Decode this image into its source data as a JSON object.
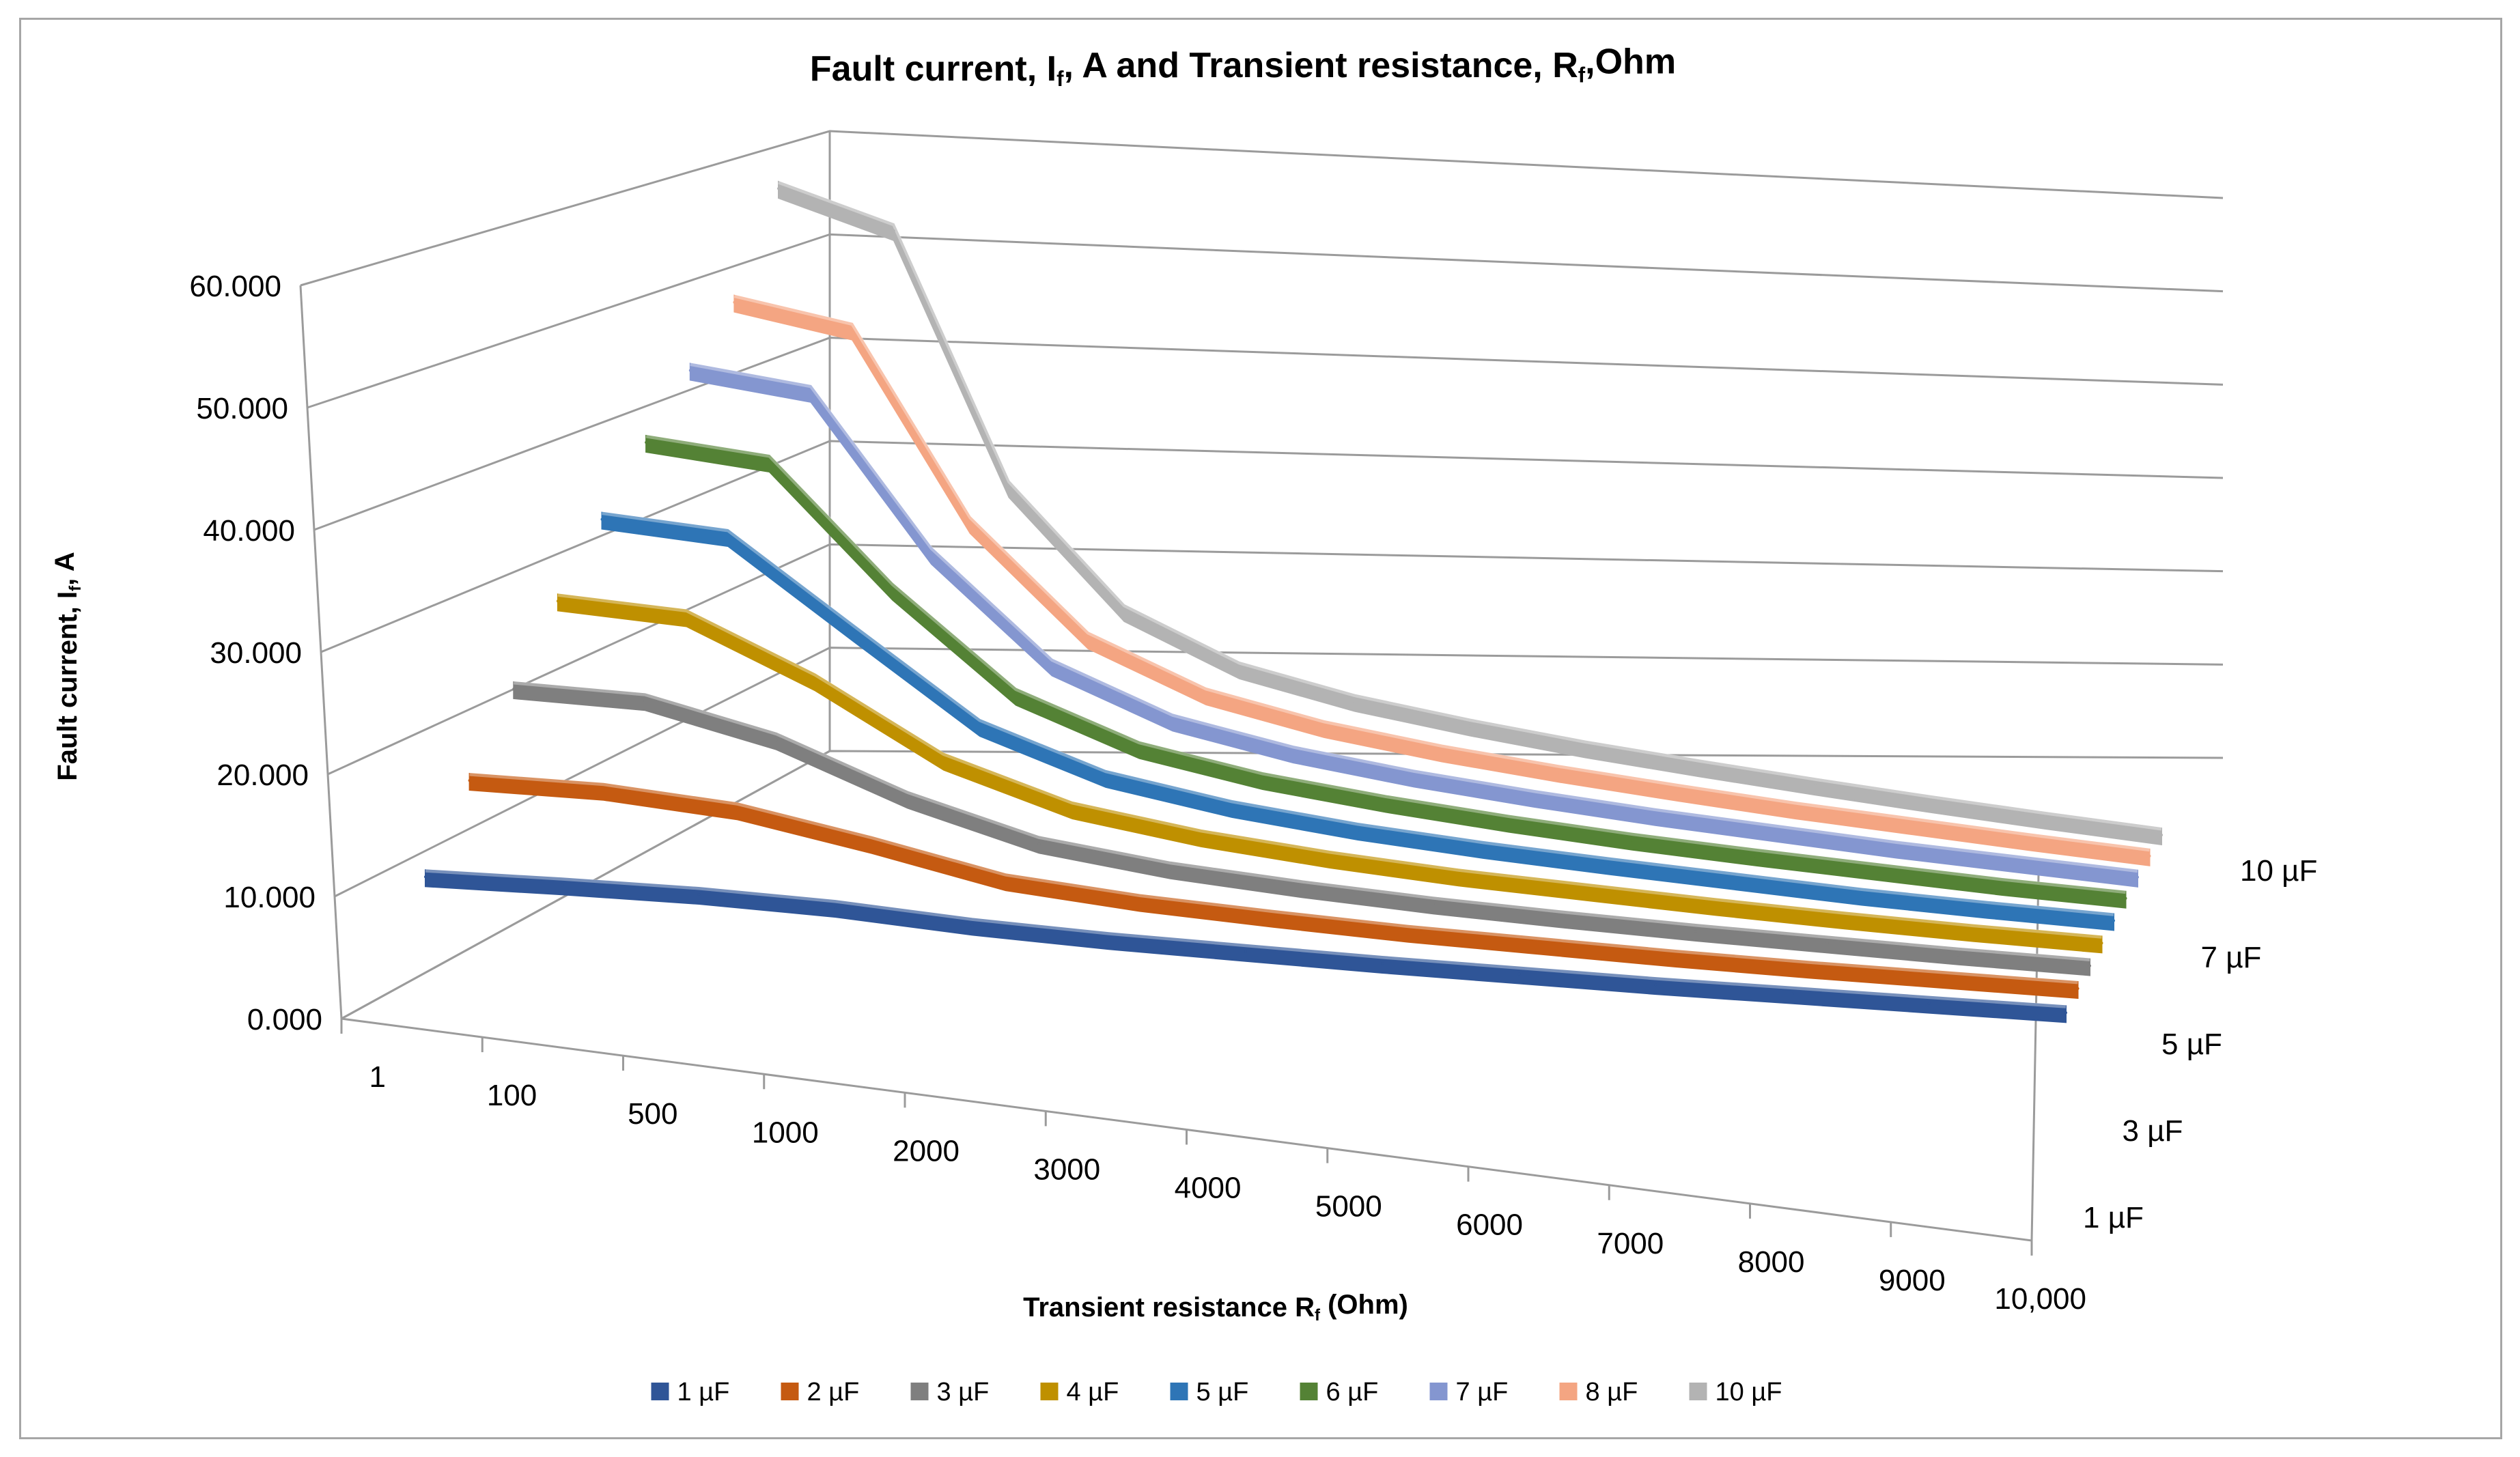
{
  "chart_data": {
    "type": "line3d",
    "title_parts": [
      "Fault current, I",
      "f",
      ", A and Transient resistance, R",
      "f",
      ",Ohm"
    ],
    "ylabel_parts": [
      "Fault current, I",
      "f",
      ", A"
    ],
    "xlabel_parts": [
      "Transient resistance R",
      "f",
      " (Ohm)"
    ],
    "categories": [
      "1",
      "100",
      "500",
      "1000",
      "2000",
      "3000",
      "4000",
      "5000",
      "6000",
      "7000",
      "8000",
      "9000",
      "10,000"
    ],
    "y_ticks": [
      "0.000",
      "10.000",
      "20.000",
      "30.000",
      "40.000",
      "50.000",
      "60.000"
    ],
    "ylim": [
      0,
      60
    ],
    "depth_ticks": [
      "1 µF",
      "3 µF",
      "5 µF",
      "7 µF",
      "10 µF"
    ],
    "legend_position": "bottom",
    "series": [
      {
        "name": "1 µF",
        "color": "#2f5597",
        "values": [
          5.9,
          5.8,
          5.6,
          5.1,
          4.2,
          3.6,
          3.2,
          2.8,
          2.5,
          2.2,
          2.0,
          1.8,
          1.6
        ]
      },
      {
        "name": "2 µF",
        "color": "#c55a11",
        "values": [
          11.7,
          11.5,
          10.5,
          8.3,
          5.8,
          4.7,
          4.0,
          3.4,
          3.0,
          2.6,
          2.3,
          2.1,
          1.9
        ]
      },
      {
        "name": "3 µF",
        "color": "#7f7f7f",
        "values": [
          17.5,
          17.2,
          14.5,
          10.1,
          6.9,
          5.4,
          4.5,
          3.8,
          3.3,
          2.9,
          2.6,
          2.3,
          2.1
        ]
      },
      {
        "name": "4 µF",
        "color": "#bf9000",
        "values": [
          23.4,
          22.8,
          17.8,
          11.4,
          7.8,
          6.1,
          5.0,
          4.2,
          3.7,
          3.2,
          2.8,
          2.5,
          2.3
        ]
      },
      {
        "name": "5 µF",
        "color": "#2e75b6",
        "values": [
          29.2,
          28.5,
          20.4,
          12.4,
          8.5,
          6.6,
          5.4,
          4.6,
          4.0,
          3.5,
          3.0,
          2.7,
          2.5
        ]
      },
      {
        "name": "6 µF",
        "color": "#548235",
        "values": [
          35.0,
          34.1,
          22.5,
          13.2,
          9.0,
          7.0,
          5.8,
          4.9,
          4.2,
          3.7,
          3.3,
          2.9,
          2.7
        ]
      },
      {
        "name": "7 µF",
        "color": "#8496d0",
        "values": [
          40.8,
          39.7,
          24.2,
          13.9,
          9.4,
          7.3,
          6.0,
          5.1,
          4.4,
          3.9,
          3.4,
          3.1,
          2.8
        ]
      },
      {
        "name": "8 µF",
        "color": "#f4a582",
        "values": [
          46.7,
          45.0,
          25.5,
          14.4,
          9.7,
          7.5,
          6.2,
          5.3,
          4.6,
          4.0,
          3.6,
          3.2,
          2.9
        ]
      },
      {
        "name": "10 µF",
        "color": "#b3b3b3",
        "values": [
          58.3,
          55.0,
          27.5,
          15.0,
          10.0,
          7.8,
          6.5,
          5.5,
          4.8,
          4.2,
          3.7,
          3.3,
          3.0
        ]
      }
    ]
  }
}
